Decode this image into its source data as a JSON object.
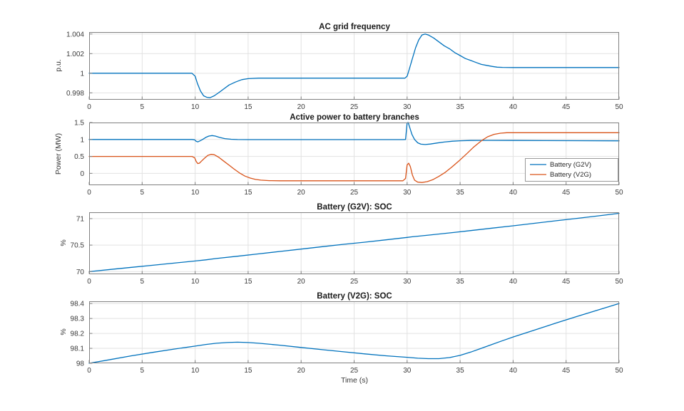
{
  "figure": {
    "background": "#ffffff",
    "axis_color": "#808080",
    "grid_color": "#e2e2e2"
  },
  "chart_data": [
    {
      "type": "line",
      "title": "AC grid frequency",
      "ylabel": "p.u.",
      "xlabel": "",
      "xlim": [
        0,
        50
      ],
      "ylim": [
        0.9973,
        1.0042
      ],
      "xticks": [
        0,
        5,
        10,
        15,
        20,
        25,
        30,
        35,
        40,
        45,
        50
      ],
      "yticks": [
        0.998,
        1,
        1.002,
        1.004
      ],
      "grid": true,
      "series": [
        {
          "name": "frequency",
          "color": "#0072BD",
          "points": [
            [
              0,
              1
            ],
            [
              9.7,
              1
            ],
            [
              10,
              0.9997
            ],
            [
              10.2,
              0.999
            ],
            [
              10.5,
              0.9982
            ],
            [
              10.8,
              0.9977
            ],
            [
              11.1,
              0.99755
            ],
            [
              11.4,
              0.9975
            ],
            [
              11.8,
              0.9977
            ],
            [
              12.2,
              0.998
            ],
            [
              12.7,
              0.9984
            ],
            [
              13.2,
              0.9988
            ],
            [
              13.8,
              0.9991
            ],
            [
              14.4,
              0.99935
            ],
            [
              15,
              0.99945
            ],
            [
              16,
              0.9995
            ],
            [
              29.8,
              0.9995
            ],
            [
              30,
              0.9997
            ],
            [
              30.2,
              1.0004
            ],
            [
              30.5,
              1.0015
            ],
            [
              30.8,
              1.0026
            ],
            [
              31.1,
              1.0034
            ],
            [
              31.4,
              1.0039
            ],
            [
              31.7,
              1.004
            ],
            [
              32,
              1.0039
            ],
            [
              32.5,
              1.0036
            ],
            [
              33,
              1.0032
            ],
            [
              33.5,
              1.0028
            ],
            [
              34,
              1.0025
            ],
            [
              34.5,
              1.0021
            ],
            [
              35,
              1.0018
            ],
            [
              35.5,
              1.0015
            ],
            [
              36,
              1.0013
            ],
            [
              36.5,
              1.0011
            ],
            [
              37,
              1.0009
            ],
            [
              37.5,
              1.0008
            ],
            [
              38,
              1.0007
            ],
            [
              38.5,
              1.00062
            ],
            [
              39,
              1.0006
            ],
            [
              40,
              1.00058
            ],
            [
              50,
              1.00058
            ]
          ]
        }
      ]
    },
    {
      "type": "line",
      "title": "Active power to battery branches",
      "ylabel": "Power (MW)",
      "xlabel": "",
      "xlim": [
        0,
        50
      ],
      "ylim": [
        -0.35,
        1.5
      ],
      "xticks": [
        0,
        5,
        10,
        15,
        20,
        25,
        30,
        35,
        40,
        45,
        50
      ],
      "yticks": [
        0,
        0.5,
        1,
        1.5
      ],
      "grid": true,
      "legend": {
        "location": "right",
        "entries": [
          "Battery (G2V)",
          "Battery (V2G)"
        ]
      },
      "series": [
        {
          "name": "Battery (G2V)",
          "color": "#0072BD",
          "points": [
            [
              0,
              1
            ],
            [
              9.7,
              1
            ],
            [
              9.95,
              0.99
            ],
            [
              10.1,
              0.945
            ],
            [
              10.25,
              0.93
            ],
            [
              10.4,
              0.95
            ],
            [
              10.7,
              1.0
            ],
            [
              11,
              1.06
            ],
            [
              11.3,
              1.1
            ],
            [
              11.6,
              1.115
            ],
            [
              11.9,
              1.1
            ],
            [
              12.3,
              1.06
            ],
            [
              12.8,
              1.025
            ],
            [
              13.4,
              1.005
            ],
            [
              14,
              0.998
            ],
            [
              15,
              0.995
            ],
            [
              29.6,
              0.995
            ],
            [
              29.85,
              1.0
            ],
            [
              30,
              1.49
            ],
            [
              30.1,
              1.5
            ],
            [
              30.25,
              1.35
            ],
            [
              30.45,
              1.15
            ],
            [
              30.7,
              1.0
            ],
            [
              31,
              0.9
            ],
            [
              31.3,
              0.86
            ],
            [
              31.7,
              0.85
            ],
            [
              32.2,
              0.865
            ],
            [
              32.8,
              0.895
            ],
            [
              33.5,
              0.925
            ],
            [
              34.3,
              0.95
            ],
            [
              35,
              0.962
            ],
            [
              36,
              0.97
            ],
            [
              37,
              0.972
            ],
            [
              38,
              0.972
            ],
            [
              40,
              0.97
            ],
            [
              43,
              0.967
            ],
            [
              46,
              0.964
            ],
            [
              50,
              0.96
            ]
          ]
        },
        {
          "name": "Battery (V2G)",
          "color": "#D95319",
          "points": [
            [
              0,
              0.5
            ],
            [
              9.7,
              0.5
            ],
            [
              9.95,
              0.46
            ],
            [
              10.1,
              0.35
            ],
            [
              10.25,
              0.29
            ],
            [
              10.4,
              0.3
            ],
            [
              10.6,
              0.36
            ],
            [
              10.9,
              0.45
            ],
            [
              11.2,
              0.53
            ],
            [
              11.5,
              0.56
            ],
            [
              11.8,
              0.55
            ],
            [
              12.2,
              0.48
            ],
            [
              12.7,
              0.36
            ],
            [
              13.2,
              0.24
            ],
            [
              13.7,
              0.12
            ],
            [
              14.2,
              0.01
            ],
            [
              14.7,
              -0.08
            ],
            [
              15.2,
              -0.14
            ],
            [
              15.7,
              -0.18
            ],
            [
              16.2,
              -0.2
            ],
            [
              17,
              -0.215
            ],
            [
              18,
              -0.22
            ],
            [
              29.6,
              -0.22
            ],
            [
              29.85,
              -0.15
            ],
            [
              30,
              0.25
            ],
            [
              30.15,
              0.3
            ],
            [
              30.3,
              0.2
            ],
            [
              30.5,
              -0.05
            ],
            [
              30.7,
              -0.2
            ],
            [
              31,
              -0.26
            ],
            [
              31.4,
              -0.27
            ],
            [
              31.9,
              -0.245
            ],
            [
              32.4,
              -0.19
            ],
            [
              33,
              -0.09
            ],
            [
              33.6,
              0.03
            ],
            [
              34.2,
              0.18
            ],
            [
              34.9,
              0.37
            ],
            [
              35.6,
              0.57
            ],
            [
              36.3,
              0.78
            ],
            [
              37,
              0.96
            ],
            [
              37.6,
              1.08
            ],
            [
              38.2,
              1.15
            ],
            [
              38.8,
              1.185
            ],
            [
              39.4,
              1.2
            ],
            [
              50,
              1.2
            ]
          ]
        }
      ]
    },
    {
      "type": "line",
      "title": "Battery (G2V): SOC",
      "ylabel": "%",
      "xlabel": "",
      "xlim": [
        0,
        50
      ],
      "ylim": [
        69.95,
        71.12
      ],
      "xticks": [
        0,
        5,
        10,
        15,
        20,
        25,
        30,
        35,
        40,
        45,
        50
      ],
      "yticks": [
        70,
        70.5,
        71
      ],
      "grid": true,
      "series": [
        {
          "name": "Battery (G2V) SOC",
          "color": "#0072BD",
          "points": [
            [
              0,
              70
            ],
            [
              2,
              70.04
            ],
            [
              4,
              70.08
            ],
            [
              6,
              70.12
            ],
            [
              8,
              70.16
            ],
            [
              10,
              70.2
            ],
            [
              11,
              70.222
            ],
            [
              12,
              70.247
            ],
            [
              14,
              70.29
            ],
            [
              16,
              70.335
            ],
            [
              18,
              70.38
            ],
            [
              20,
              70.425
            ],
            [
              22,
              70.47
            ],
            [
              24,
              70.515
            ],
            [
              26,
              70.555
            ],
            [
              28,
              70.6
            ],
            [
              30,
              70.645
            ],
            [
              30.5,
              70.658
            ],
            [
              31,
              70.668
            ],
            [
              32,
              70.688
            ],
            [
              34,
              70.73
            ],
            [
              36,
              70.775
            ],
            [
              38,
              70.82
            ],
            [
              40,
              70.865
            ],
            [
              42,
              70.912
            ],
            [
              44,
              70.958
            ],
            [
              46,
              71.005
            ],
            [
              48,
              71.052
            ],
            [
              50,
              71.1
            ]
          ]
        }
      ]
    },
    {
      "type": "line",
      "title": "Battery (V2G): SOC",
      "ylabel": "%",
      "xlabel": "Time (s)",
      "xlim": [
        0,
        50
      ],
      "ylim": [
        98,
        98.415
      ],
      "xticks": [
        0,
        5,
        10,
        15,
        20,
        25,
        30,
        35,
        40,
        45,
        50
      ],
      "yticks": [
        98,
        98.1,
        98.2,
        98.3,
        98.4
      ],
      "grid": true,
      "series": [
        {
          "name": "Battery (V2G) SOC",
          "color": "#0072BD",
          "points": [
            [
              0,
              98
            ],
            [
              2,
              98.025
            ],
            [
              4,
              98.05
            ],
            [
              6,
              98.073
            ],
            [
              8,
              98.095
            ],
            [
              10,
              98.115
            ],
            [
              11,
              98.126
            ],
            [
              12,
              98.134
            ],
            [
              13,
              98.139
            ],
            [
              14,
              98.141
            ],
            [
              15,
              98.139
            ],
            [
              16,
              98.134
            ],
            [
              18,
              98.121
            ],
            [
              20,
              98.106
            ],
            [
              22,
              98.091
            ],
            [
              24,
              98.077
            ],
            [
              26,
              98.063
            ],
            [
              28,
              98.05
            ],
            [
              30,
              98.04
            ],
            [
              31,
              98.034
            ],
            [
              32,
              98.031
            ],
            [
              33,
              98.031
            ],
            [
              34,
              98.038
            ],
            [
              35,
              98.053
            ],
            [
              36,
              98.075
            ],
            [
              37,
              98.1
            ],
            [
              38,
              98.126
            ],
            [
              39,
              98.151
            ],
            [
              40,
              98.176
            ],
            [
              42,
              98.222
            ],
            [
              44,
              98.268
            ],
            [
              46,
              98.313
            ],
            [
              48,
              98.357
            ],
            [
              50,
              98.4
            ]
          ]
        }
      ]
    }
  ]
}
